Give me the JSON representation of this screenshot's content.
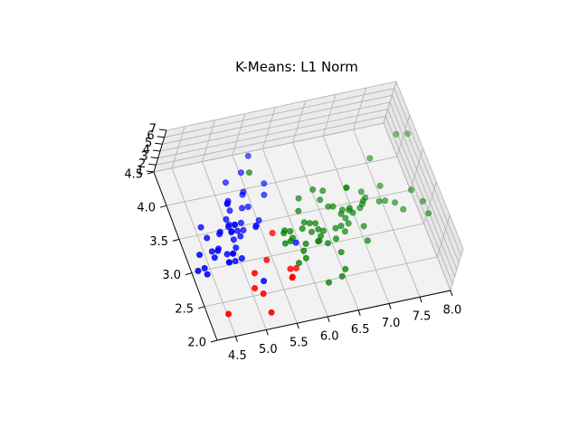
{
  "chart_data": {
    "type": "scatter",
    "projection": "3d",
    "title": "K-Means: L1 Norm",
    "xlabel": "",
    "ylabel": "",
    "zlabel": "",
    "x_ticks": [
      "4.5",
      "5.0",
      "5.5",
      "6.0",
      "6.5",
      "7.0",
      "7.5",
      "8.0"
    ],
    "y_ticks": [
      "2.0",
      "2.5",
      "3.0",
      "3.5",
      "4.0",
      "4.5"
    ],
    "z_ticks": [
      "1",
      "2",
      "3",
      "4",
      "5",
      "6",
      "7"
    ],
    "xlim": [
      4.2,
      8.0
    ],
    "ylim": [
      2.0,
      4.5
    ],
    "zlim": [
      1,
      7
    ],
    "grid": true,
    "legend": "none",
    "series": [
      {
        "color": "#0000ff",
        "points": [
          [
            5.1,
            3.5,
            1.4
          ],
          [
            4.9,
            3.0,
            1.4
          ],
          [
            4.7,
            3.2,
            1.3
          ],
          [
            4.6,
            3.1,
            1.5
          ],
          [
            5.0,
            3.6,
            1.4
          ],
          [
            5.4,
            3.9,
            1.7
          ],
          [
            4.6,
            3.4,
            1.4
          ],
          [
            5.0,
            3.4,
            1.5
          ],
          [
            4.4,
            2.9,
            1.4
          ],
          [
            4.9,
            3.1,
            1.5
          ],
          [
            5.4,
            3.7,
            1.5
          ],
          [
            4.8,
            3.4,
            1.6
          ],
          [
            4.8,
            3.0,
            1.4
          ],
          [
            4.3,
            3.0,
            1.1
          ],
          [
            5.8,
            4.0,
            1.2
          ],
          [
            5.7,
            4.4,
            1.5
          ],
          [
            5.4,
            3.9,
            1.3
          ],
          [
            5.1,
            3.5,
            1.4
          ],
          [
            5.7,
            3.8,
            1.7
          ],
          [
            5.1,
            3.8,
            1.5
          ],
          [
            5.4,
            3.4,
            1.7
          ],
          [
            5.1,
            3.7,
            1.5
          ],
          [
            4.6,
            3.6,
            1.0
          ],
          [
            5.1,
            3.3,
            1.7
          ],
          [
            4.8,
            3.4,
            1.9
          ],
          [
            5.0,
            3.0,
            1.6
          ],
          [
            5.0,
            3.4,
            1.6
          ],
          [
            5.2,
            3.5,
            1.5
          ],
          [
            5.2,
            3.4,
            1.4
          ],
          [
            4.7,
            3.2,
            1.6
          ],
          [
            4.8,
            3.1,
            1.6
          ],
          [
            5.4,
            3.4,
            1.5
          ],
          [
            5.2,
            4.1,
            1.5
          ],
          [
            5.5,
            4.2,
            1.4
          ],
          [
            4.9,
            3.1,
            1.5
          ],
          [
            5.0,
            3.2,
            1.2
          ],
          [
            5.5,
            3.5,
            1.3
          ],
          [
            4.4,
            3.0,
            1.3
          ],
          [
            5.1,
            3.4,
            1.5
          ],
          [
            5.0,
            3.5,
            1.3
          ],
          [
            4.4,
            3.2,
            1.3
          ],
          [
            5.0,
            3.5,
            1.6
          ],
          [
            5.1,
            3.8,
            1.9
          ],
          [
            4.8,
            3.0,
            1.4
          ],
          [
            5.1,
            3.8,
            1.6
          ],
          [
            4.6,
            3.2,
            1.4
          ],
          [
            5.3,
            3.7,
            1.5
          ],
          [
            5.0,
            3.3,
            1.4
          ],
          [
            5.7,
            2.8,
            4.5
          ],
          [
            5.1,
            2.5,
            3.0
          ]
        ]
      },
      {
        "color": "#ff0000",
        "points": [
          [
            4.5,
            2.3,
            1.3
          ],
          [
            4.9,
            2.4,
            3.3
          ],
          [
            5.0,
            2.0,
            3.5
          ],
          [
            5.2,
            2.7,
            3.9
          ],
          [
            5.6,
            2.5,
            3.9
          ],
          [
            5.5,
            2.4,
            3.8
          ],
          [
            5.5,
            2.4,
            3.7
          ],
          [
            5.0,
            2.3,
            3.3
          ],
          [
            5.5,
            2.5,
            4.0
          ],
          [
            4.9,
            2.5,
            4.5
          ],
          [
            5.4,
            3.0,
            4.5
          ]
        ]
      },
      {
        "color": "#008000",
        "points": [
          [
            7.0,
            3.2,
            4.7
          ],
          [
            6.4,
            3.2,
            4.5
          ],
          [
            6.9,
            3.1,
            4.9
          ],
          [
            6.5,
            2.8,
            4.6
          ],
          [
            6.3,
            3.3,
            4.7
          ],
          [
            6.6,
            2.9,
            4.6
          ],
          [
            5.9,
            3.0,
            4.2
          ],
          [
            6.0,
            2.2,
            4.0
          ],
          [
            6.1,
            2.9,
            4.7
          ],
          [
            5.6,
            2.9,
            3.6
          ],
          [
            6.7,
            3.1,
            4.4
          ],
          [
            5.6,
            3.0,
            4.5
          ],
          [
            5.8,
            2.7,
            4.1
          ],
          [
            6.2,
            2.2,
            4.5
          ],
          [
            5.9,
            3.2,
            4.8
          ],
          [
            6.1,
            2.8,
            4.0
          ],
          [
            6.3,
            2.5,
            4.9
          ],
          [
            6.1,
            2.8,
            4.7
          ],
          [
            6.4,
            2.9,
            4.3
          ],
          [
            6.6,
            3.0,
            4.4
          ],
          [
            6.8,
            2.8,
            4.8
          ],
          [
            6.7,
            3.0,
            5.0
          ],
          [
            6.0,
            2.9,
            4.5
          ],
          [
            5.7,
            2.6,
            3.5
          ],
          [
            6.0,
            2.7,
            5.1
          ],
          [
            5.4,
            3.9,
            4.5
          ],
          [
            6.0,
            3.4,
            4.5
          ],
          [
            6.7,
            3.1,
            4.7
          ],
          [
            6.3,
            2.3,
            4.4
          ],
          [
            5.6,
            3.0,
            4.1
          ],
          [
            6.1,
            3.0,
            4.6
          ],
          [
            5.8,
            2.6,
            4.0
          ],
          [
            5.7,
            3.0,
            4.2
          ],
          [
            5.7,
            2.9,
            4.2
          ],
          [
            6.2,
            2.9,
            4.3
          ],
          [
            6.3,
            3.3,
            6.0
          ],
          [
            7.1,
            3.0,
            5.9
          ],
          [
            6.5,
            3.0,
            5.8
          ],
          [
            7.6,
            3.0,
            6.6
          ],
          [
            7.3,
            2.9,
            6.3
          ],
          [
            7.2,
            3.6,
            6.1
          ],
          [
            6.8,
            3.0,
            5.5
          ],
          [
            7.7,
            3.8,
            6.7
          ],
          [
            7.7,
            2.6,
            6.9
          ],
          [
            6.9,
            3.2,
            5.7
          ],
          [
            7.7,
            2.8,
            6.7
          ],
          [
            6.7,
            3.3,
            5.7
          ],
          [
            7.2,
            3.2,
            6.0
          ],
          [
            7.9,
            3.8,
            6.4
          ],
          [
            7.4,
            2.8,
            6.1
          ],
          [
            6.4,
            3.1,
            5.5
          ],
          [
            6.9,
            3.1,
            5.4
          ],
          [
            6.7,
            3.3,
            5.7
          ],
          [
            6.5,
            3.0,
            5.2
          ],
          [
            6.2,
            3.4,
            5.4
          ],
          [
            5.9,
            3.0,
            5.1
          ],
          [
            5.8,
            2.7,
            5.1
          ],
          [
            5.6,
            2.8,
            4.9
          ],
          [
            6.3,
            2.7,
            4.9
          ],
          [
            6.7,
            2.5,
            5.8
          ],
          [
            7.2,
            3.0,
            5.8
          ],
          [
            6.1,
            2.6,
            5.6
          ],
          [
            6.4,
            2.8,
            5.6
          ],
          [
            6.0,
            3.0,
            4.8
          ]
        ]
      }
    ]
  }
}
